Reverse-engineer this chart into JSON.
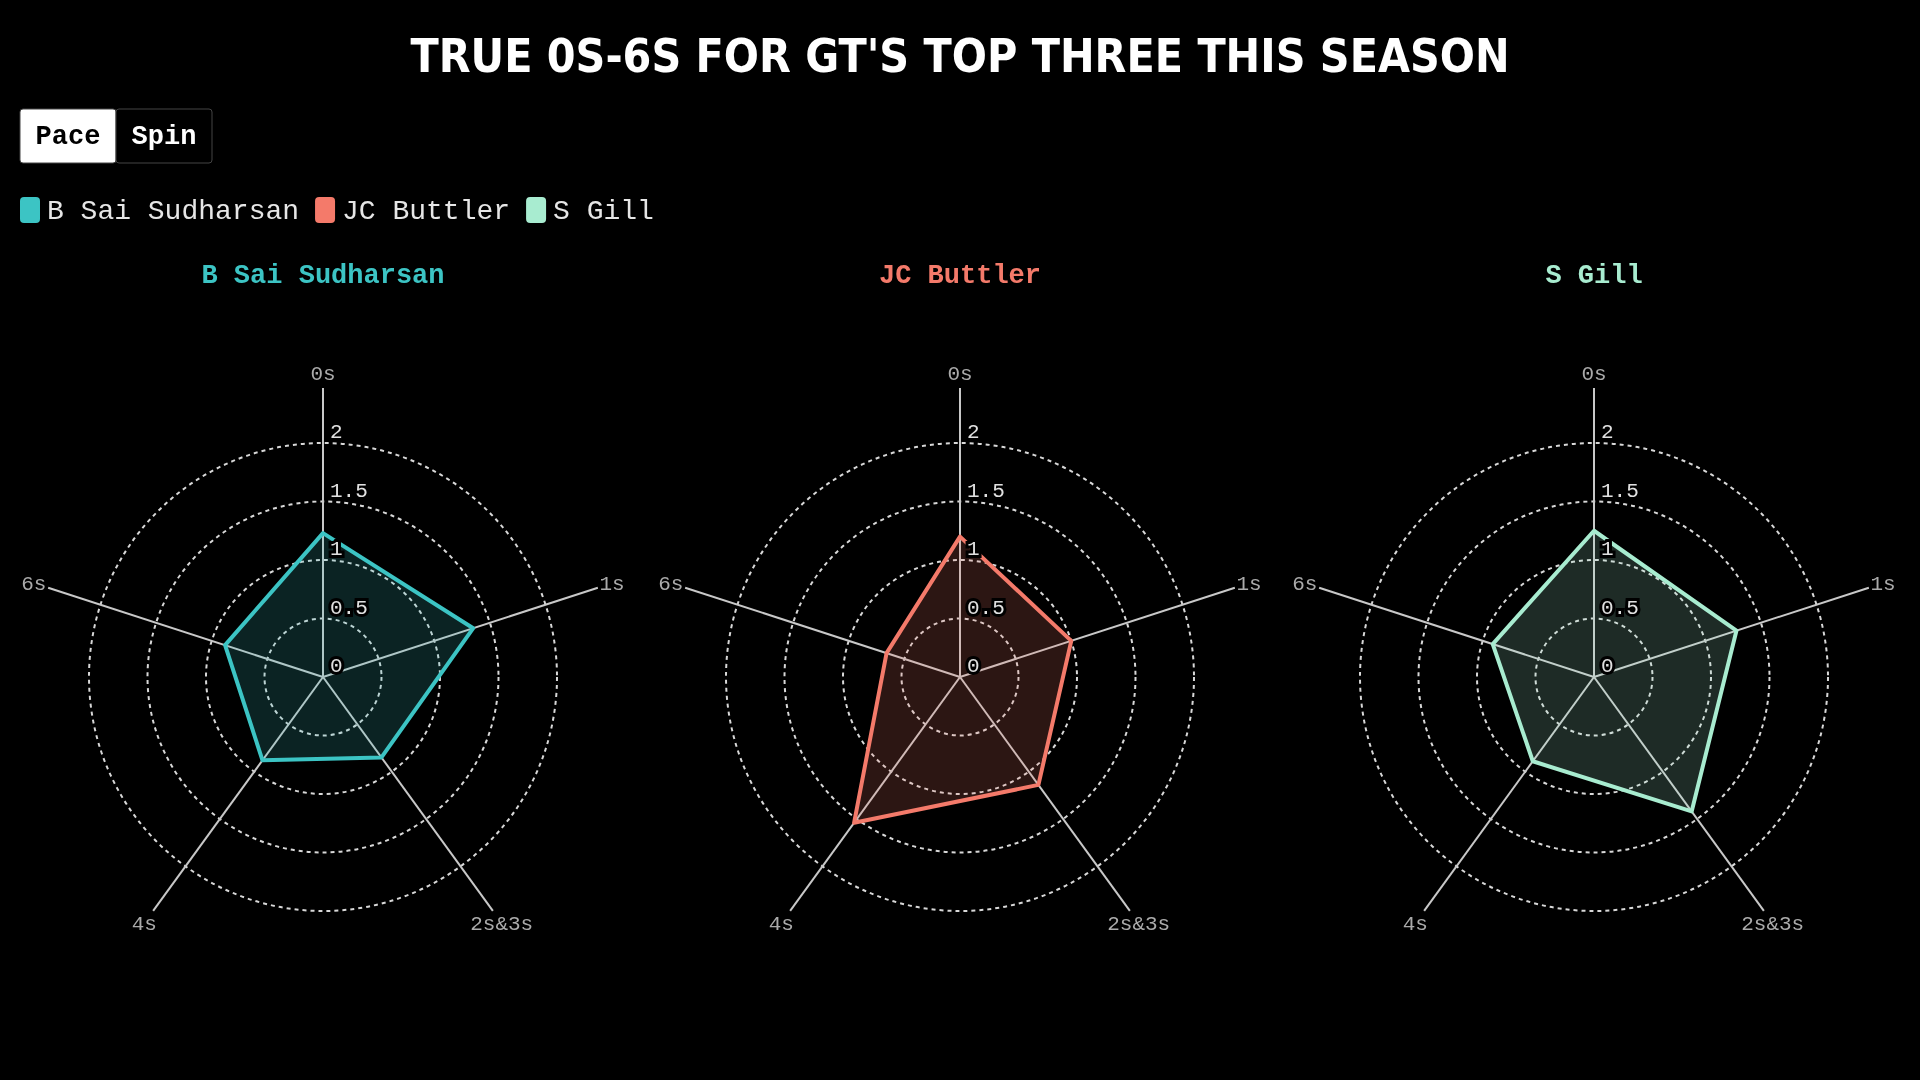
{
  "chart_data": [
    {
      "type": "radar",
      "title": "B Sai Sudharsan",
      "annotations": [
        "TRUE 0S-6S FOR GT'S TOP THREE THIS SEASON",
        "Pace",
        "Spin"
      ],
      "legend": "top left",
      "categories": [
        "0s",
        "1s",
        "2s&3s",
        "4s",
        "6s"
      ],
      "ylim": [
        0,
        2
      ],
      "yticks": [
        0,
        0.5,
        1,
        1.5,
        2
      ],
      "grid": true,
      "line_style": "solid",
      "series": [
        {
          "name": "B Sai Sudharsan",
          "color": "#3cc4c4",
          "values": [
            1.23,
            1.35,
            0.85,
            0.88,
            0.88
          ]
        }
      ]
    },
    {
      "type": "radar",
      "title": "JC Buttler",
      "legend": "top left",
      "categories": [
        "0s",
        "1s",
        "2s&3s",
        "4s",
        "6s"
      ],
      "ylim": [
        0,
        2
      ],
      "yticks": [
        0,
        0.5,
        1,
        1.5,
        2
      ],
      "grid": true,
      "line_style": "solid",
      "series": [
        {
          "name": "JC Buttler",
          "color": "#f47a6a",
          "values": [
            1.2,
            1.0,
            1.14,
            1.54,
            0.66
          ]
        }
      ]
    },
    {
      "type": "radar",
      "title": "S Gill",
      "legend": "top left",
      "categories": [
        "0s",
        "1s",
        "2s&3s",
        "4s",
        "6s"
      ],
      "ylim": [
        0,
        2
      ],
      "yticks": [
        0,
        0.5,
        1,
        1.5,
        2
      ],
      "grid": true,
      "line_style": "solid",
      "series": [
        {
          "name": "S Gill",
          "color": "#a8ecd0",
          "values": [
            1.25,
            1.28,
            1.42,
            0.89,
            0.91
          ]
        }
      ]
    }
  ]
}
